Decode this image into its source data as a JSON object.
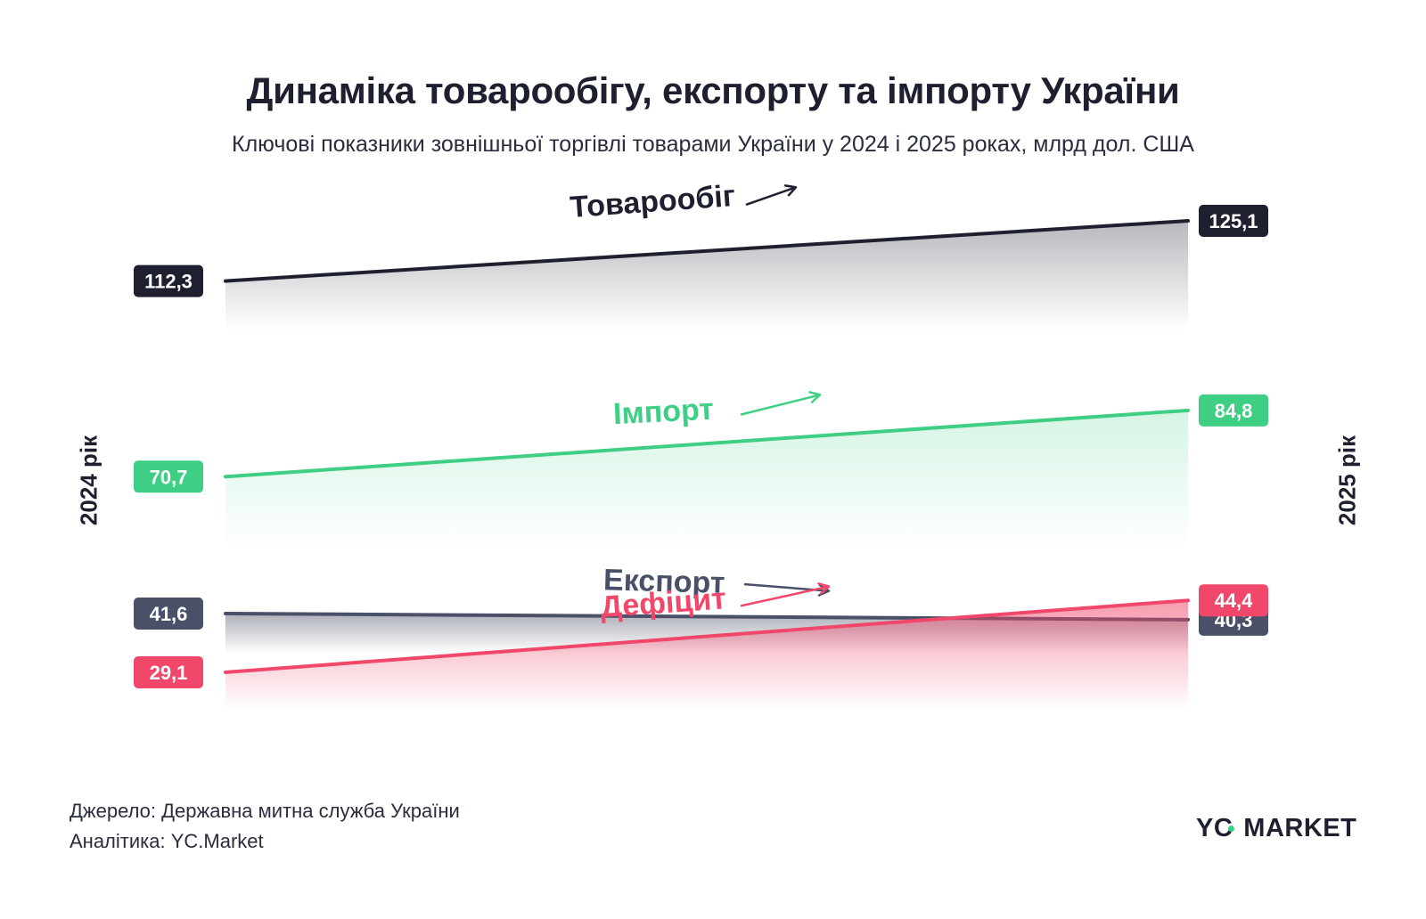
{
  "title": "Динаміка товарообігу, експорту та імпорту України",
  "subtitle": "Ключові показники зовнішньої торгівлі товарами України у 2024 і 2025 роках, млрд дол. США",
  "year_left": "2024 рік",
  "year_right": "2025 рік",
  "footer": {
    "source": "Джерело: Державна митна служба України",
    "analytics": "Аналітика: YC.Market"
  },
  "logo": {
    "yc": "YC",
    "market": "MARKET",
    "dot_color": "#3ecf85"
  },
  "chart_data": {
    "type": "line",
    "categories": [
      "2024",
      "2025"
    ],
    "unit": "млрд дол. США",
    "grid": false,
    "legend": "none",
    "series": [
      {
        "name": "Товарообіг",
        "values": [
          112.3,
          125.1
        ],
        "labels": [
          "112,3",
          "125,1"
        ],
        "color": "#1e2030",
        "fill": "#7d7f88",
        "arrow": "up"
      },
      {
        "name": "Імпорт",
        "values": [
          70.7,
          84.8
        ],
        "labels": [
          "70,7",
          "84,8"
        ],
        "color": "#3ecf85",
        "fill": "#3ecf85",
        "arrow": "up"
      },
      {
        "name": "Експорт",
        "values": [
          41.6,
          40.3
        ],
        "labels": [
          "41,6",
          "40,3"
        ],
        "color": "#4a5068",
        "fill": "#6b6f82",
        "arrow": "down"
      },
      {
        "name": "Дефіцит",
        "values": [
          29.1,
          44.4
        ],
        "labels": [
          "29,1",
          "44,4"
        ],
        "color": "#f0476a",
        "fill": "#f0476a",
        "arrow": "up"
      }
    ]
  }
}
